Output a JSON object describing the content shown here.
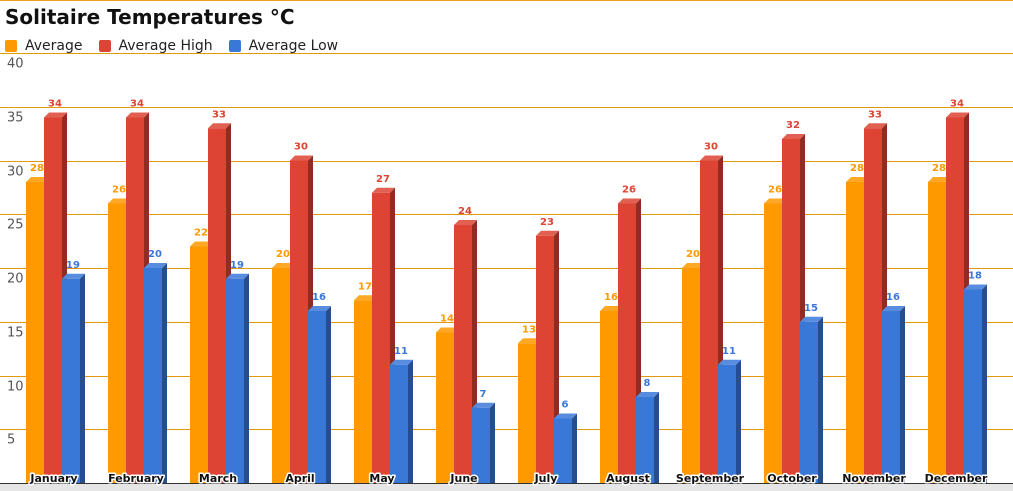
{
  "chart_data": {
    "type": "bar",
    "title": "Solitaire Temperatures °C",
    "xlabel": "",
    "ylabel": "",
    "ylim": [
      0,
      40
    ],
    "yticks": [
      5,
      10,
      15,
      20,
      25,
      30,
      35,
      40
    ],
    "grid": true,
    "legend_position": "top-left",
    "categories": [
      "January",
      "February",
      "March",
      "April",
      "May",
      "June",
      "July",
      "August",
      "September",
      "October",
      "November",
      "December"
    ],
    "series": [
      {
        "name": "Average",
        "color": "#ff9900",
        "values": [
          28,
          26,
          22,
          20,
          17,
          14,
          13,
          16,
          20,
          26,
          28,
          28
        ]
      },
      {
        "name": "Average High",
        "color": "#dd4433",
        "values": [
          34,
          34,
          33,
          30,
          27,
          24,
          23,
          26,
          30,
          32,
          33,
          34
        ]
      },
      {
        "name": "Average Low",
        "color": "#3a78d8",
        "values": [
          19,
          20,
          19,
          16,
          11,
          7,
          6,
          8,
          11,
          15,
          16,
          18
        ]
      }
    ],
    "gridline_color": "#e09a10"
  }
}
